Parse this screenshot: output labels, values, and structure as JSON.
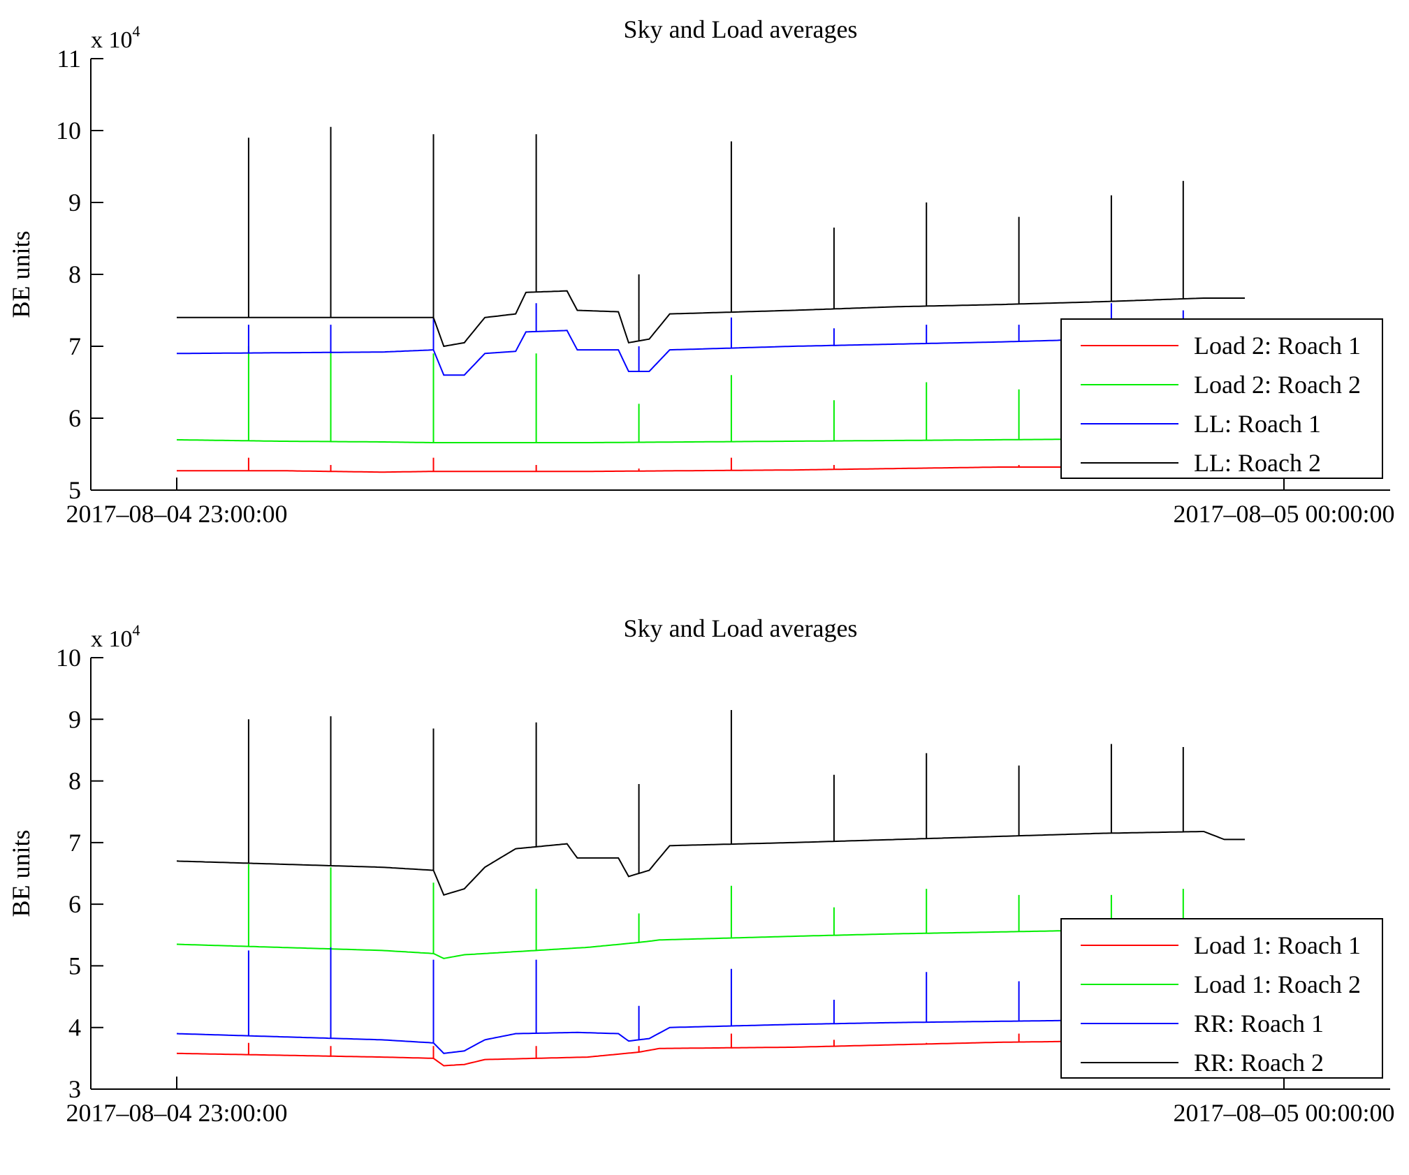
{
  "chart_data": [
    {
      "type": "line",
      "title": "Sky and Load averages",
      "ylabel": "BE units",
      "y_multiplier_base": "x 10",
      "y_multiplier_exp": "4",
      "ylim": [
        5,
        11
      ],
      "yticks": [
        "5",
        "6",
        "7",
        "8",
        "9",
        "10",
        "11"
      ],
      "xlim": [
        "2017-08-04 23:00:00",
        "2017-08-05 00:00:00"
      ],
      "xticks": [
        "2017–08–04 23:00:00",
        "2017–08–05 00:00:00"
      ],
      "legend_position": "lower-right",
      "spike_times_min": [
        7,
        15,
        25,
        35,
        45,
        54,
        64,
        73,
        82,
        91,
        98
      ],
      "series": [
        {
          "name": "Load 2: Roach 1",
          "color": "#ff0000",
          "spikes": [
            5.45,
            5.35,
            5.45,
            5.35,
            5.3,
            5.45,
            5.35,
            5.3,
            5.35,
            null,
            null
          ],
          "values": [
            [
              0,
              5.27
            ],
            [
              10,
              5.27
            ],
            [
              20,
              5.25
            ],
            [
              25,
              5.26
            ],
            [
              30,
              5.26
            ],
            [
              40,
              5.26
            ],
            [
              50,
              5.27
            ],
            [
              60,
              5.28
            ],
            [
              70,
              5.3
            ],
            [
              80,
              5.32
            ],
            [
              90,
              5.32
            ],
            [
              100,
              5.33
            ],
            [
              104,
              5.33
            ]
          ]
        },
        {
          "name": "Load 2: Roach 2",
          "color": "#00ee00",
          "spikes": [
            7.0,
            6.95,
            6.9,
            6.9,
            6.2,
            6.6,
            6.25,
            6.5,
            6.4,
            null,
            null
          ],
          "values": [
            [
              0,
              5.7
            ],
            [
              10,
              5.68
            ],
            [
              20,
              5.67
            ],
            [
              25,
              5.66
            ],
            [
              30,
              5.66
            ],
            [
              40,
              5.66
            ],
            [
              50,
              5.67
            ],
            [
              60,
              5.68
            ],
            [
              70,
              5.69
            ],
            [
              80,
              5.7
            ],
            [
              90,
              5.71
            ],
            [
              100,
              5.72
            ],
            [
              104,
              5.72
            ]
          ]
        },
        {
          "name": "LL: Roach 1",
          "color": "#0000ff",
          "spikes": [
            7.3,
            7.3,
            7.5,
            7.6,
            7.0,
            7.4,
            7.25,
            7.3,
            7.3,
            7.6,
            7.5
          ],
          "values": [
            [
              0,
              6.9
            ],
            [
              10,
              6.91
            ],
            [
              20,
              6.92
            ],
            [
              25,
              6.95
            ],
            [
              26,
              6.6
            ],
            [
              28,
              6.6
            ],
            [
              30,
              6.9
            ],
            [
              33,
              6.93
            ],
            [
              34,
              7.2
            ],
            [
              38,
              7.22
            ],
            [
              39,
              6.95
            ],
            [
              43,
              6.95
            ],
            [
              44,
              6.65
            ],
            [
              46,
              6.65
            ],
            [
              48,
              6.95
            ],
            [
              60,
              7.0
            ],
            [
              70,
              7.03
            ],
            [
              80,
              7.06
            ],
            [
              90,
              7.1
            ],
            [
              100,
              7.12
            ],
            [
              104,
              7.12
            ]
          ]
        },
        {
          "name": "LL: Roach 2",
          "color": "#000000",
          "spikes": [
            9.9,
            10.05,
            9.95,
            9.95,
            8.0,
            9.85,
            8.65,
            9.0,
            8.8,
            9.1,
            9.3
          ],
          "values": [
            [
              0,
              7.4
            ],
            [
              10,
              7.4
            ],
            [
              20,
              7.4
            ],
            [
              25,
              7.4
            ],
            [
              26,
              7.0
            ],
            [
              28,
              7.05
            ],
            [
              30,
              7.4
            ],
            [
              33,
              7.45
            ],
            [
              34,
              7.75
            ],
            [
              38,
              7.77
            ],
            [
              39,
              7.5
            ],
            [
              43,
              7.48
            ],
            [
              44,
              7.05
            ],
            [
              46,
              7.1
            ],
            [
              48,
              7.45
            ],
            [
              60,
              7.5
            ],
            [
              70,
              7.55
            ],
            [
              80,
              7.58
            ],
            [
              90,
              7.62
            ],
            [
              100,
              7.67
            ],
            [
              104,
              7.67
            ]
          ]
        }
      ]
    },
    {
      "type": "line",
      "title": "Sky and Load averages",
      "ylabel": "BE units",
      "y_multiplier_base": "x 10",
      "y_multiplier_exp": "4",
      "ylim": [
        3,
        10
      ],
      "yticks": [
        "3",
        "4",
        "5",
        "6",
        "7",
        "8",
        "9",
        "10"
      ],
      "xlim": [
        "2017-08-04 23:00:00",
        "2017-08-05 00:00:00"
      ],
      "xticks": [
        "2017–08–04 23:00:00",
        "2017–08–05 00:00:00"
      ],
      "legend_position": "lower-right",
      "spike_times_min": [
        7,
        15,
        25,
        35,
        45,
        54,
        64,
        73,
        82,
        91,
        98
      ],
      "series": [
        {
          "name": "Load 1: Roach 1",
          "color": "#ff0000",
          "spikes": [
            3.75,
            3.7,
            3.7,
            3.7,
            3.7,
            3.9,
            3.8,
            3.75,
            3.9,
            null,
            null
          ],
          "values": [
            [
              0,
              3.58
            ],
            [
              10,
              3.55
            ],
            [
              20,
              3.52
            ],
            [
              25,
              3.5
            ],
            [
              26,
              3.38
            ],
            [
              28,
              3.4
            ],
            [
              30,
              3.48
            ],
            [
              40,
              3.52
            ],
            [
              45,
              3.6
            ],
            [
              47,
              3.66
            ],
            [
              60,
              3.68
            ],
            [
              70,
              3.72
            ],
            [
              80,
              3.76
            ],
            [
              90,
              3.78
            ],
            [
              100,
              3.8
            ],
            [
              104,
              3.8
            ]
          ]
        },
        {
          "name": "Load 1: Roach 2",
          "color": "#00ee00",
          "spikes": [
            6.65,
            6.6,
            6.35,
            6.25,
            5.85,
            6.3,
            5.95,
            6.25,
            6.15,
            6.15,
            6.25
          ],
          "values": [
            [
              0,
              5.35
            ],
            [
              10,
              5.3
            ],
            [
              20,
              5.25
            ],
            [
              25,
              5.2
            ],
            [
              26,
              5.12
            ],
            [
              28,
              5.18
            ],
            [
              30,
              5.2
            ],
            [
              40,
              5.3
            ],
            [
              45,
              5.38
            ],
            [
              47,
              5.42
            ],
            [
              60,
              5.48
            ],
            [
              70,
              5.52
            ],
            [
              80,
              5.55
            ],
            [
              90,
              5.58
            ],
            [
              100,
              5.6
            ],
            [
              104,
              5.6
            ]
          ]
        },
        {
          "name": "RR: Roach 1",
          "color": "#0000ff",
          "spikes": [
            5.25,
            5.3,
            5.1,
            5.1,
            4.35,
            4.95,
            4.45,
            4.9,
            4.75,
            null,
            null
          ],
          "values": [
            [
              0,
              3.9
            ],
            [
              10,
              3.85
            ],
            [
              20,
              3.8
            ],
            [
              25,
              3.75
            ],
            [
              26,
              3.58
            ],
            [
              28,
              3.62
            ],
            [
              30,
              3.8
            ],
            [
              33,
              3.9
            ],
            [
              39,
              3.92
            ],
            [
              43,
              3.9
            ],
            [
              44,
              3.78
            ],
            [
              46,
              3.82
            ],
            [
              48,
              4.0
            ],
            [
              60,
              4.05
            ],
            [
              70,
              4.08
            ],
            [
              80,
              4.1
            ],
            [
              90,
              4.12
            ],
            [
              100,
              4.15
            ],
            [
              104,
              4.15
            ]
          ]
        },
        {
          "name": "RR: Roach 2",
          "color": "#000000",
          "spikes": [
            9.0,
            9.05,
            8.85,
            8.95,
            7.95,
            9.15,
            8.1,
            8.45,
            8.25,
            8.6,
            8.55
          ],
          "values": [
            [
              0,
              6.7
            ],
            [
              10,
              6.65
            ],
            [
              20,
              6.6
            ],
            [
              25,
              6.55
            ],
            [
              26,
              6.15
            ],
            [
              28,
              6.25
            ],
            [
              30,
              6.6
            ],
            [
              33,
              6.9
            ],
            [
              38,
              6.98
            ],
            [
              39,
              6.75
            ],
            [
              43,
              6.75
            ],
            [
              44,
              6.45
            ],
            [
              46,
              6.55
            ],
            [
              48,
              6.95
            ],
            [
              60,
              7.0
            ],
            [
              70,
              7.05
            ],
            [
              80,
              7.1
            ],
            [
              90,
              7.15
            ],
            [
              100,
              7.18
            ],
            [
              102,
              7.05
            ],
            [
              104,
              7.05
            ]
          ]
        }
      ]
    }
  ]
}
